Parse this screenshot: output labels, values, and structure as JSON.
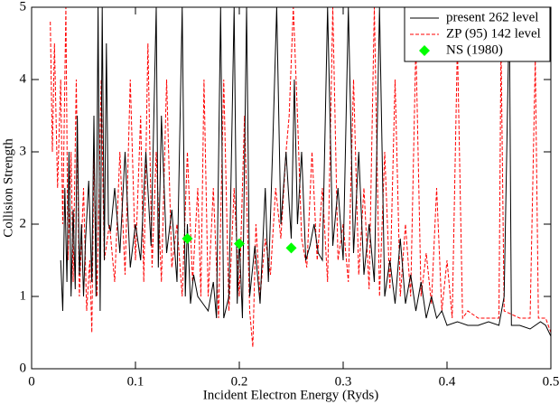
{
  "chart_data": {
    "type": "line",
    "xlabel": "Incident Electron Energy (Ryds)",
    "ylabel": "Collision Strength",
    "xlim": [
      0,
      0.5
    ],
    "xticks": [
      0,
      0.1,
      0.2,
      0.3,
      0.4,
      0.5
    ],
    "ylim": [
      0,
      5
    ],
    "yticks": [
      0,
      1,
      2,
      3,
      4,
      5
    ],
    "legend": "top-right",
    "series": [
      {
        "name": "present 262 level",
        "color": "#000000",
        "style": "solid",
        "x": [
          0.028,
          0.03,
          0.032,
          0.034,
          0.036,
          0.038,
          0.04,
          0.042,
          0.044,
          0.046,
          0.048,
          0.05,
          0.052,
          0.055,
          0.058,
          0.06,
          0.062,
          0.064,
          0.066,
          0.068,
          0.07,
          0.072,
          0.074,
          0.076,
          0.08,
          0.085,
          0.09,
          0.095,
          0.1,
          0.105,
          0.11,
          0.115,
          0.12,
          0.122,
          0.125,
          0.13,
          0.135,
          0.14,
          0.145,
          0.148,
          0.15,
          0.153,
          0.156,
          0.16,
          0.165,
          0.17,
          0.175,
          0.178,
          0.182,
          0.185,
          0.19,
          0.195,
          0.198,
          0.2,
          0.203,
          0.207,
          0.21,
          0.215,
          0.22,
          0.225,
          0.228,
          0.232,
          0.236,
          0.24,
          0.245,
          0.25,
          0.253,
          0.256,
          0.26,
          0.264,
          0.268,
          0.272,
          0.276,
          0.28,
          0.285,
          0.29,
          0.295,
          0.3,
          0.305,
          0.31,
          0.315,
          0.32,
          0.325,
          0.33,
          0.335,
          0.34,
          0.345,
          0.35,
          0.355,
          0.36,
          0.365,
          0.37,
          0.375,
          0.38,
          0.385,
          0.39,
          0.395,
          0.4,
          0.41,
          0.42,
          0.43,
          0.44,
          0.45,
          0.455,
          0.46,
          0.462,
          0.47,
          0.48,
          0.49,
          0.495,
          0.5
        ],
        "values": [
          1.5,
          0.8,
          2.5,
          1.2,
          3.0,
          1.0,
          2.2,
          1.1,
          3.5,
          1.3,
          2.0,
          1.0,
          1.8,
          2.6,
          1.2,
          3.5,
          1.0,
          5,
          0.8,
          5,
          1.5,
          4.5,
          2.0,
          1.9,
          2.5,
          1.6,
          3.0,
          1.4,
          2.0,
          1.5,
          3.0,
          1.7,
          5,
          1.4,
          3.5,
          1.6,
          2.2,
          1.2,
          5,
          1.0,
          2.0,
          0.9,
          1.3,
          1.0,
          0.9,
          0.8,
          1.2,
          0.7,
          5,
          0.7,
          1.0,
          5,
          0.9,
          1.8,
          0.7,
          5,
          1.0,
          1.7,
          0.9,
          2.5,
          1.2,
          3.0,
          5,
          2.0,
          3.0,
          1.8,
          4.0,
          2.0,
          3.0,
          1.5,
          1.7,
          2.0,
          1.6,
          1.5,
          5,
          1.7,
          2.5,
          1.5,
          5,
          1.6,
          3.0,
          1.3,
          2.0,
          1.2,
          5,
          1.0,
          1.5,
          0.9,
          1.8,
          0.9,
          1.3,
          0.8,
          1.2,
          0.7,
          1.0,
          0.7,
          0.8,
          0.6,
          0.65,
          0.6,
          0.6,
          0.65,
          0.6,
          1.0,
          5,
          0.6,
          0.6,
          0.55,
          0.65,
          0.6,
          0.45
        ]
      },
      {
        "name": "ZP (95) 142 level",
        "color": "#ff0000",
        "style": "dashed",
        "x": [
          0.018,
          0.02,
          0.022,
          0.025,
          0.028,
          0.03,
          0.033,
          0.035,
          0.038,
          0.04,
          0.043,
          0.046,
          0.05,
          0.053,
          0.056,
          0.058,
          0.06,
          0.063,
          0.067,
          0.07,
          0.075,
          0.08,
          0.085,
          0.09,
          0.095,
          0.1,
          0.105,
          0.108,
          0.112,
          0.116,
          0.12,
          0.125,
          0.13,
          0.135,
          0.14,
          0.145,
          0.15,
          0.155,
          0.16,
          0.163,
          0.166,
          0.17,
          0.175,
          0.18,
          0.185,
          0.19,
          0.195,
          0.2,
          0.205,
          0.21,
          0.213,
          0.216,
          0.22,
          0.225,
          0.23,
          0.235,
          0.24,
          0.245,
          0.248,
          0.252,
          0.256,
          0.26,
          0.265,
          0.27,
          0.275,
          0.28,
          0.285,
          0.29,
          0.295,
          0.3,
          0.305,
          0.31,
          0.315,
          0.32,
          0.325,
          0.33,
          0.335,
          0.34,
          0.345,
          0.35,
          0.355,
          0.36,
          0.365,
          0.37,
          0.375,
          0.38,
          0.385,
          0.39,
          0.395,
          0.4,
          0.405,
          0.41,
          0.415,
          0.42,
          0.43,
          0.44,
          0.45,
          0.452,
          0.455,
          0.47,
          0.48,
          0.485,
          0.488,
          0.495,
          0.5
        ],
        "values": [
          4.8,
          3.0,
          4.5,
          2.5,
          4.0,
          2.0,
          5,
          1.5,
          3.0,
          1.2,
          4.0,
          1.0,
          2.5,
          0.8,
          1.5,
          0.5,
          3.0,
          1.0,
          4.0,
          1.5,
          2.0,
          1.2,
          3.0,
          1.3,
          4.0,
          1.5,
          3.5,
          1.2,
          4.5,
          1.4,
          3.0,
          1.2,
          4.0,
          1.4,
          2.0,
          1.0,
          3.0,
          1.2,
          2.5,
          1.0,
          4.0,
          1.0,
          2.5,
          0.7,
          4.0,
          0.8,
          2.5,
          1.0,
          3.5,
          0.8,
          0.3,
          2.0,
          1.0,
          1.8,
          1.3,
          2.5,
          1.8,
          3.0,
          3.5,
          5,
          3.5,
          1.8,
          1.4,
          3.0,
          1.5,
          2.5,
          1.2,
          5,
          1.5,
          2.0,
          1.2,
          4.0,
          1.3,
          2.5,
          1.1,
          5,
          1.0,
          3.0,
          1.1,
          4.0,
          1.0,
          2.0,
          1.0,
          4.5,
          1.0,
          1.6,
          0.9,
          2.5,
          0.8,
          1.5,
          0.7,
          4.5,
          0.7,
          0.8,
          0.7,
          0.7,
          0.7,
          4.5,
          0.8,
          0.7,
          0.7,
          4.3,
          0.7,
          0.7,
          0.5
        ]
      },
      {
        "name": "NS (1980)",
        "color": "#00ff00",
        "style": "marker",
        "x": [
          0.15,
          0.2,
          0.25
        ],
        "values": [
          1.8,
          1.73,
          1.67
        ]
      }
    ]
  }
}
